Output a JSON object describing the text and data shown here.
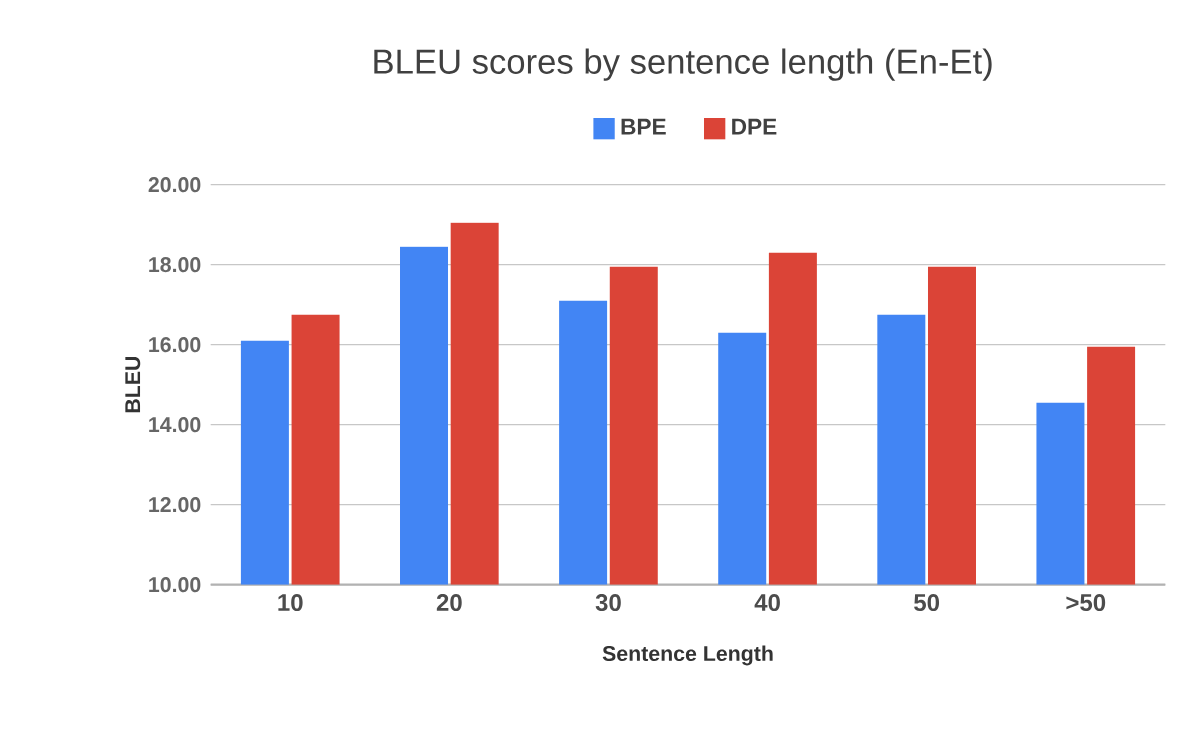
{
  "chart_data": {
    "type": "bar",
    "title": "BLEU scores by sentence length (En-Et)",
    "xlabel": "Sentence Length",
    "ylabel": "BLEU",
    "categories": [
      "10",
      "20",
      "30",
      "40",
      "50",
      ">50"
    ],
    "series": [
      {
        "name": "BPE",
        "color": "#4285f4",
        "values": [
          16.1,
          18.45,
          17.1,
          16.3,
          16.75,
          14.55
        ]
      },
      {
        "name": "DPE",
        "color": "#db4437",
        "values": [
          16.75,
          19.05,
          17.95,
          18.3,
          17.95,
          15.95
        ]
      }
    ],
    "ylim": [
      10,
      20
    ],
    "yticks": [
      {
        "value": 10,
        "label": "10.00"
      },
      {
        "value": 12,
        "label": "12.00"
      },
      {
        "value": 14,
        "label": "14.00"
      },
      {
        "value": 16,
        "label": "16.00"
      },
      {
        "value": 18,
        "label": "18.00"
      },
      {
        "value": 20,
        "label": "20.00"
      }
    ],
    "grid": "y",
    "legend": "top"
  }
}
